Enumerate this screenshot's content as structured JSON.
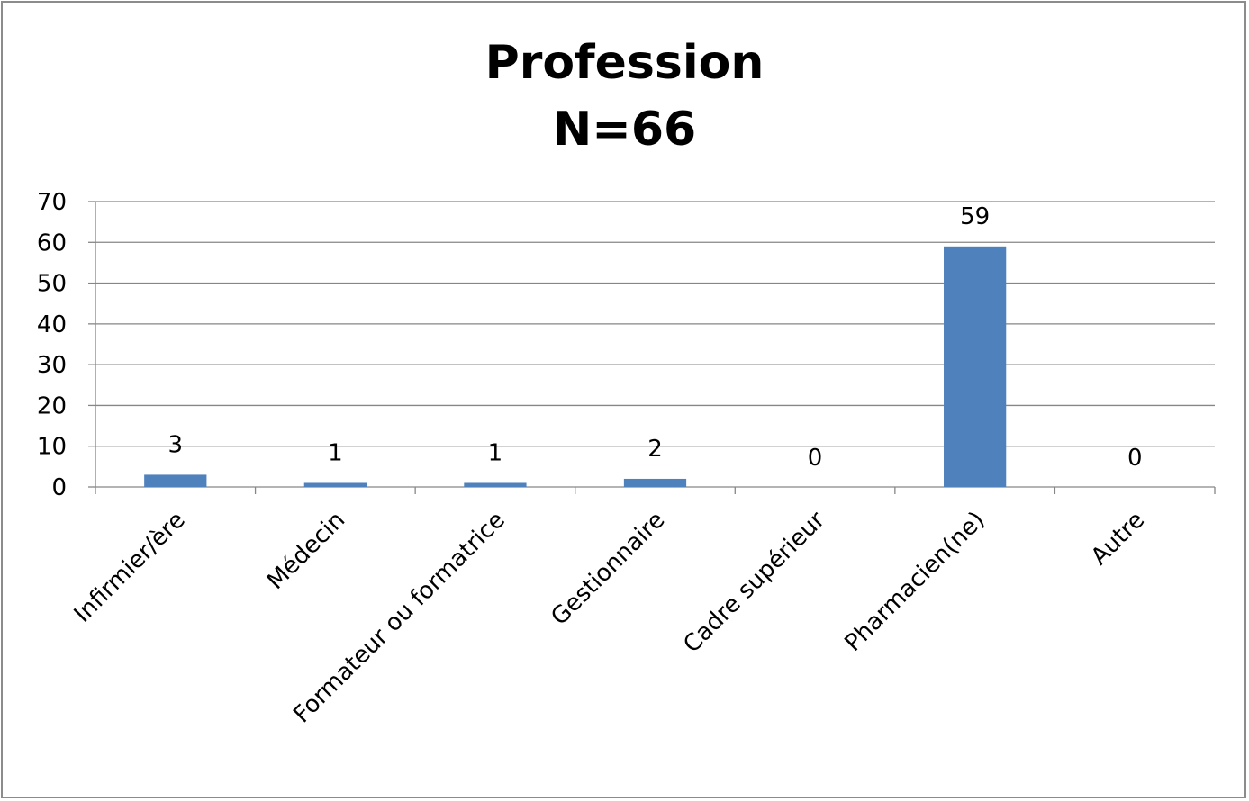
{
  "chart_data": {
    "type": "bar",
    "title": "Profession",
    "subtitle": "N=66",
    "categories": [
      "Infirmier/ère",
      "Médecin",
      "Formateur ou formatrice",
      "Gestionnaire",
      "Cadre supérieur",
      "Pharmacien(ne)",
      "Autre"
    ],
    "values": [
      3,
      1,
      1,
      2,
      0,
      59,
      0
    ],
    "data_labels": [
      "3",
      "1",
      "1",
      "2",
      "0",
      "59",
      "0"
    ],
    "xlabel": "",
    "ylabel": "",
    "ylim": [
      0,
      70
    ],
    "yticks": [
      0,
      10,
      20,
      30,
      40,
      50,
      60,
      70
    ],
    "grid": true,
    "legend": "none",
    "bar_color": "#4f81bd",
    "gridline_color": "#868686"
  }
}
